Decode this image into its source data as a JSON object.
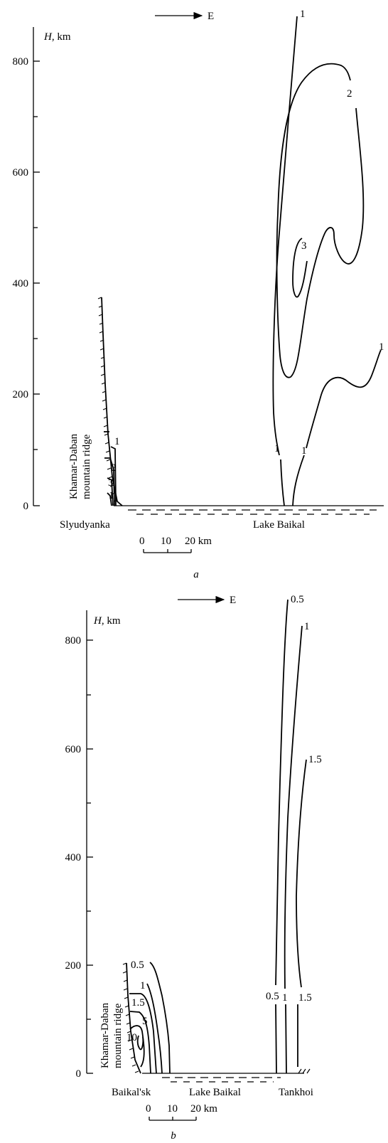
{
  "panel_a": {
    "direction_label": "E",
    "axis_label_var": "H",
    "axis_label_unit": ", km",
    "ticks": [
      "0",
      "200",
      "400",
      "600",
      "800"
    ],
    "isolines_west": [
      "1",
      "2",
      "3",
      "1"
    ],
    "isolines_east": [
      "1",
      "2",
      "3",
      "1",
      "1",
      "1"
    ],
    "ridge_label_1": "Khamar-Daban",
    "ridge_label_2": "mountain ridge",
    "place_left": "Slyudyanka",
    "place_right": "Lake  Baikal",
    "scale_labels": [
      "0",
      "10",
      "20 km"
    ],
    "caption": "a"
  },
  "panel_b": {
    "direction_label": "E",
    "axis_label_var": "H",
    "axis_label_unit": ", km",
    "ticks": [
      "0",
      "200",
      "400",
      "600",
      "800"
    ],
    "isolines_west": [
      "0.5",
      "1",
      "1.5",
      "5",
      "10"
    ],
    "isolines_east_top": [
      "0.5",
      "1",
      "1.5"
    ],
    "isolines_east_bottom": [
      "0.5",
      "1",
      "1.5"
    ],
    "ridge_label_1": "Khamar-Daban",
    "ridge_label_2": "mountain ridge",
    "place_left": "Baikal'sk",
    "place_mid": "Lake  Baikal",
    "place_right": "Tankhoi",
    "scale_labels": [
      "0",
      "10",
      "20 km"
    ],
    "caption": "b"
  }
}
